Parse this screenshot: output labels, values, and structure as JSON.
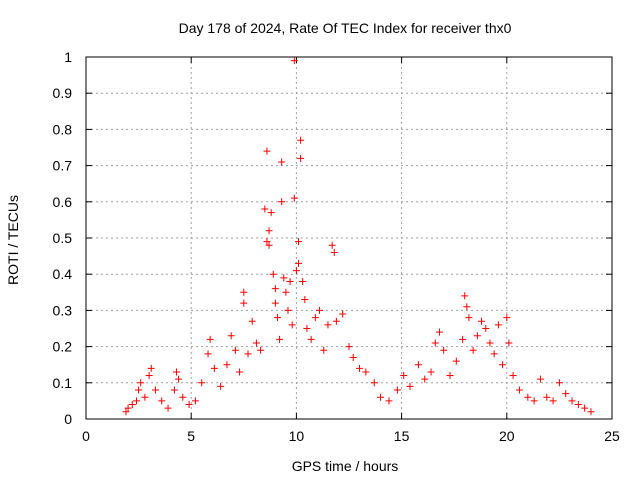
{
  "chart_data": {
    "type": "scatter",
    "title": "Day 178 of 2024, Rate Of TEC Index for receiver thx0",
    "xlabel": "GPS time / hours",
    "ylabel": "ROTI / TECUs",
    "xlim": [
      0,
      25
    ],
    "ylim": [
      0,
      1
    ],
    "x_ticks": [
      "0",
      "5",
      "10",
      "15",
      "20",
      "25"
    ],
    "y_ticks": [
      "0",
      "0.1",
      "0.2",
      "0.3",
      "0.4",
      "0.5",
      "0.6",
      "0.7",
      "0.8",
      "0.9",
      "1"
    ],
    "grid": true,
    "marker": "+",
    "color": "#ff0000",
    "points": [
      [
        1.9,
        0.02
      ],
      [
        2.0,
        0.03
      ],
      [
        2.2,
        0.04
      ],
      [
        2.4,
        0.05
      ],
      [
        2.5,
        0.08
      ],
      [
        2.6,
        0.1
      ],
      [
        2.8,
        0.06
      ],
      [
        3.0,
        0.12
      ],
      [
        3.1,
        0.14
      ],
      [
        3.3,
        0.08
      ],
      [
        3.6,
        0.05
      ],
      [
        3.9,
        0.03
      ],
      [
        4.2,
        0.08
      ],
      [
        4.3,
        0.13
      ],
      [
        4.4,
        0.11
      ],
      [
        4.6,
        0.06
      ],
      [
        4.9,
        0.04
      ],
      [
        5.2,
        0.05
      ],
      [
        5.5,
        0.1
      ],
      [
        5.8,
        0.18
      ],
      [
        5.9,
        0.22
      ],
      [
        6.1,
        0.14
      ],
      [
        6.4,
        0.09
      ],
      [
        6.7,
        0.15
      ],
      [
        6.9,
        0.23
      ],
      [
        7.1,
        0.19
      ],
      [
        7.3,
        0.13
      ],
      [
        7.5,
        0.35
      ],
      [
        7.5,
        0.32
      ],
      [
        7.7,
        0.18
      ],
      [
        7.9,
        0.27
      ],
      [
        8.1,
        0.21
      ],
      [
        8.3,
        0.19
      ],
      [
        8.5,
        0.58
      ],
      [
        8.6,
        0.74
      ],
      [
        8.6,
        0.49
      ],
      [
        8.7,
        0.52
      ],
      [
        8.7,
        0.48
      ],
      [
        8.8,
        0.57
      ],
      [
        8.9,
        0.4
      ],
      [
        9.0,
        0.36
      ],
      [
        9.0,
        0.32
      ],
      [
        9.1,
        0.28
      ],
      [
        9.2,
        0.22
      ],
      [
        9.3,
        0.71
      ],
      [
        9.3,
        0.6
      ],
      [
        9.4,
        0.39
      ],
      [
        9.5,
        0.35
      ],
      [
        9.6,
        0.3
      ],
      [
        9.7,
        0.38
      ],
      [
        9.8,
        0.26
      ],
      [
        9.9,
        0.61
      ],
      [
        9.9,
        0.99
      ],
      [
        10.0,
        0.41
      ],
      [
        10.1,
        0.49
      ],
      [
        10.1,
        0.43
      ],
      [
        10.2,
        0.77
      ],
      [
        10.2,
        0.72
      ],
      [
        10.3,
        0.38
      ],
      [
        10.4,
        0.33
      ],
      [
        10.5,
        0.25
      ],
      [
        10.7,
        0.22
      ],
      [
        10.9,
        0.28
      ],
      [
        11.1,
        0.3
      ],
      [
        11.3,
        0.19
      ],
      [
        11.5,
        0.26
      ],
      [
        11.7,
        0.48
      ],
      [
        11.8,
        0.46
      ],
      [
        11.9,
        0.27
      ],
      [
        12.2,
        0.29
      ],
      [
        12.5,
        0.2
      ],
      [
        12.7,
        0.17
      ],
      [
        13.0,
        0.14
      ],
      [
        13.3,
        0.13
      ],
      [
        13.7,
        0.1
      ],
      [
        14.0,
        0.06
      ],
      [
        14.4,
        0.05
      ],
      [
        14.8,
        0.08
      ],
      [
        15.1,
        0.12
      ],
      [
        15.4,
        0.09
      ],
      [
        15.8,
        0.15
      ],
      [
        16.1,
        0.11
      ],
      [
        16.4,
        0.13
      ],
      [
        16.6,
        0.21
      ],
      [
        16.8,
        0.24
      ],
      [
        17.0,
        0.19
      ],
      [
        17.3,
        0.12
      ],
      [
        17.6,
        0.16
      ],
      [
        17.9,
        0.22
      ],
      [
        18.0,
        0.34
      ],
      [
        18.1,
        0.31
      ],
      [
        18.2,
        0.28
      ],
      [
        18.4,
        0.19
      ],
      [
        18.6,
        0.23
      ],
      [
        18.8,
        0.27
      ],
      [
        19.0,
        0.25
      ],
      [
        19.2,
        0.21
      ],
      [
        19.4,
        0.18
      ],
      [
        19.6,
        0.26
      ],
      [
        19.8,
        0.15
      ],
      [
        20.0,
        0.28
      ],
      [
        20.1,
        0.21
      ],
      [
        20.3,
        0.12
      ],
      [
        20.6,
        0.08
      ],
      [
        21.0,
        0.06
      ],
      [
        21.3,
        0.05
      ],
      [
        21.6,
        0.11
      ],
      [
        21.9,
        0.06
      ],
      [
        22.2,
        0.05
      ],
      [
        22.5,
        0.1
      ],
      [
        22.8,
        0.07
      ],
      [
        23.1,
        0.05
      ],
      [
        23.4,
        0.04
      ],
      [
        23.7,
        0.03
      ],
      [
        24.0,
        0.02
      ]
    ]
  }
}
